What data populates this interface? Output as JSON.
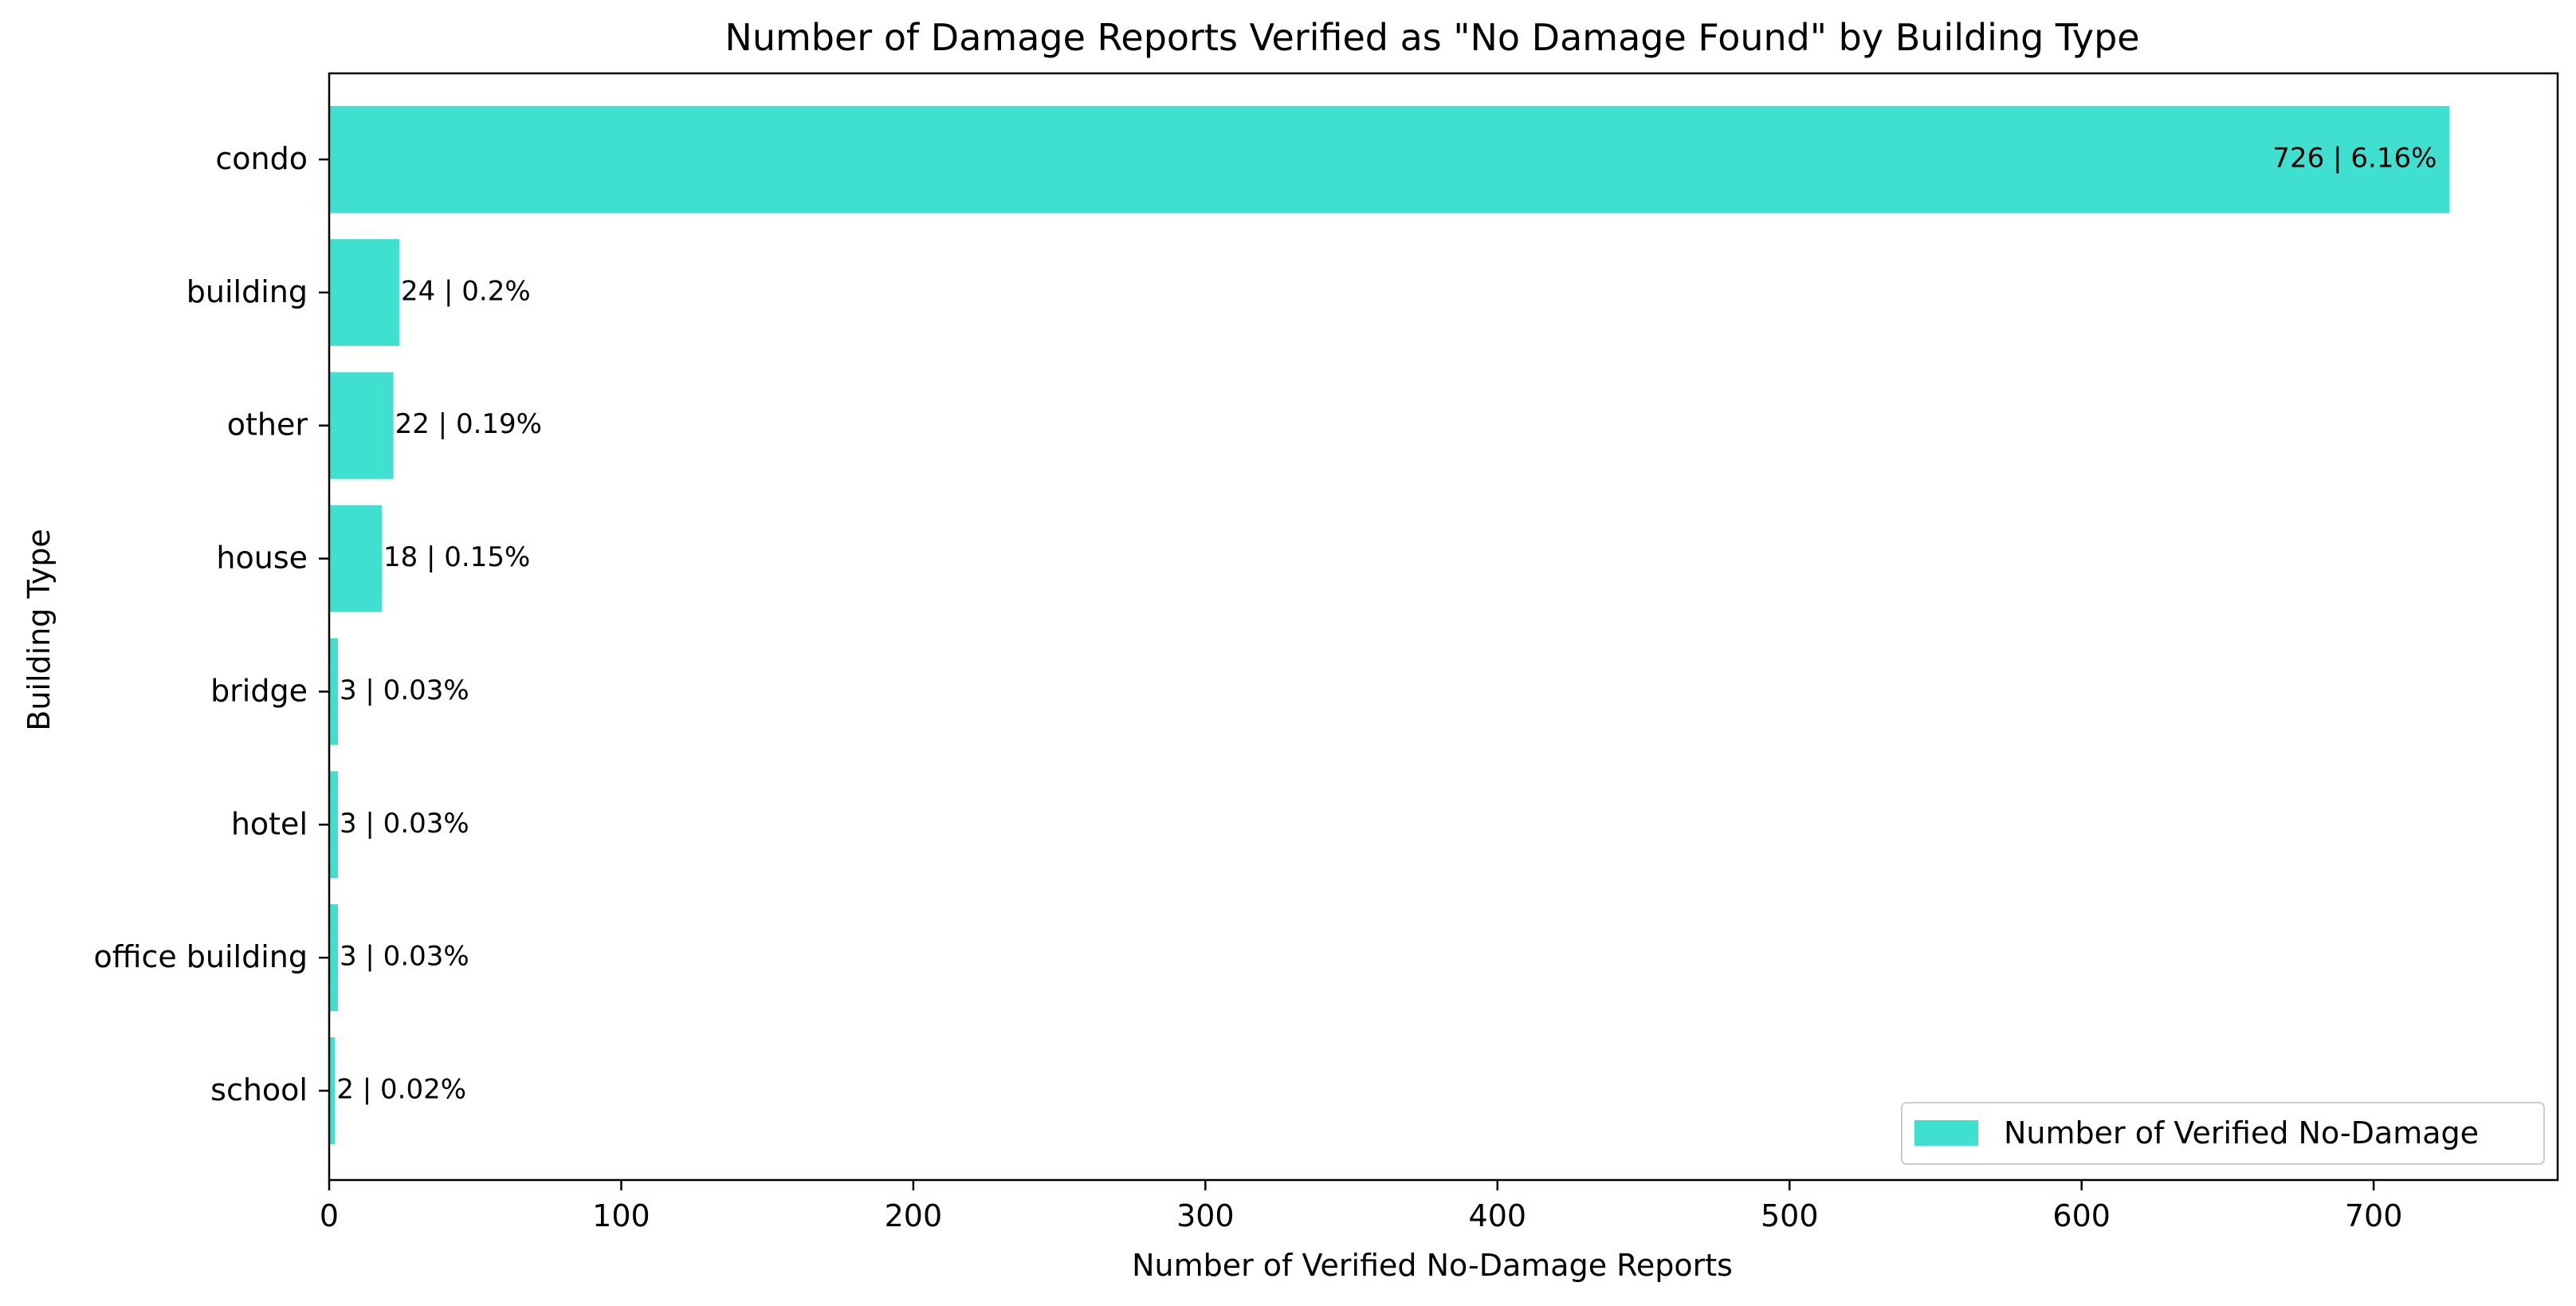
{
  "chart_data": {
    "type": "bar",
    "orientation": "horizontal",
    "title": "Number of Damage Reports Verified as \"No Damage Found\" by Building Type",
    "xlabel": "Number of Verified No-Damage Reports",
    "ylabel": "Building Type",
    "xlim": [
      0,
      763
    ],
    "x_ticks": [
      0,
      100,
      200,
      300,
      400,
      500,
      600,
      700
    ],
    "categories": [
      "condo",
      "building",
      "other",
      "house",
      "bridge",
      "hotel",
      "office building",
      "school"
    ],
    "series": [
      {
        "name": "Number of Verified No-Damage",
        "color": "#40e0d0",
        "values": [
          726,
          24,
          22,
          18,
          3,
          3,
          3,
          2
        ],
        "labels": [
          "726 | 6.16%",
          "24 | 0.2%",
          "22 | 0.19%",
          "18 | 0.15%",
          "3 | 0.03%",
          "3 | 0.03%",
          "3 | 0.03%",
          "2 | 0.02%"
        ]
      }
    ],
    "grid": false,
    "legend": "lower-right"
  }
}
